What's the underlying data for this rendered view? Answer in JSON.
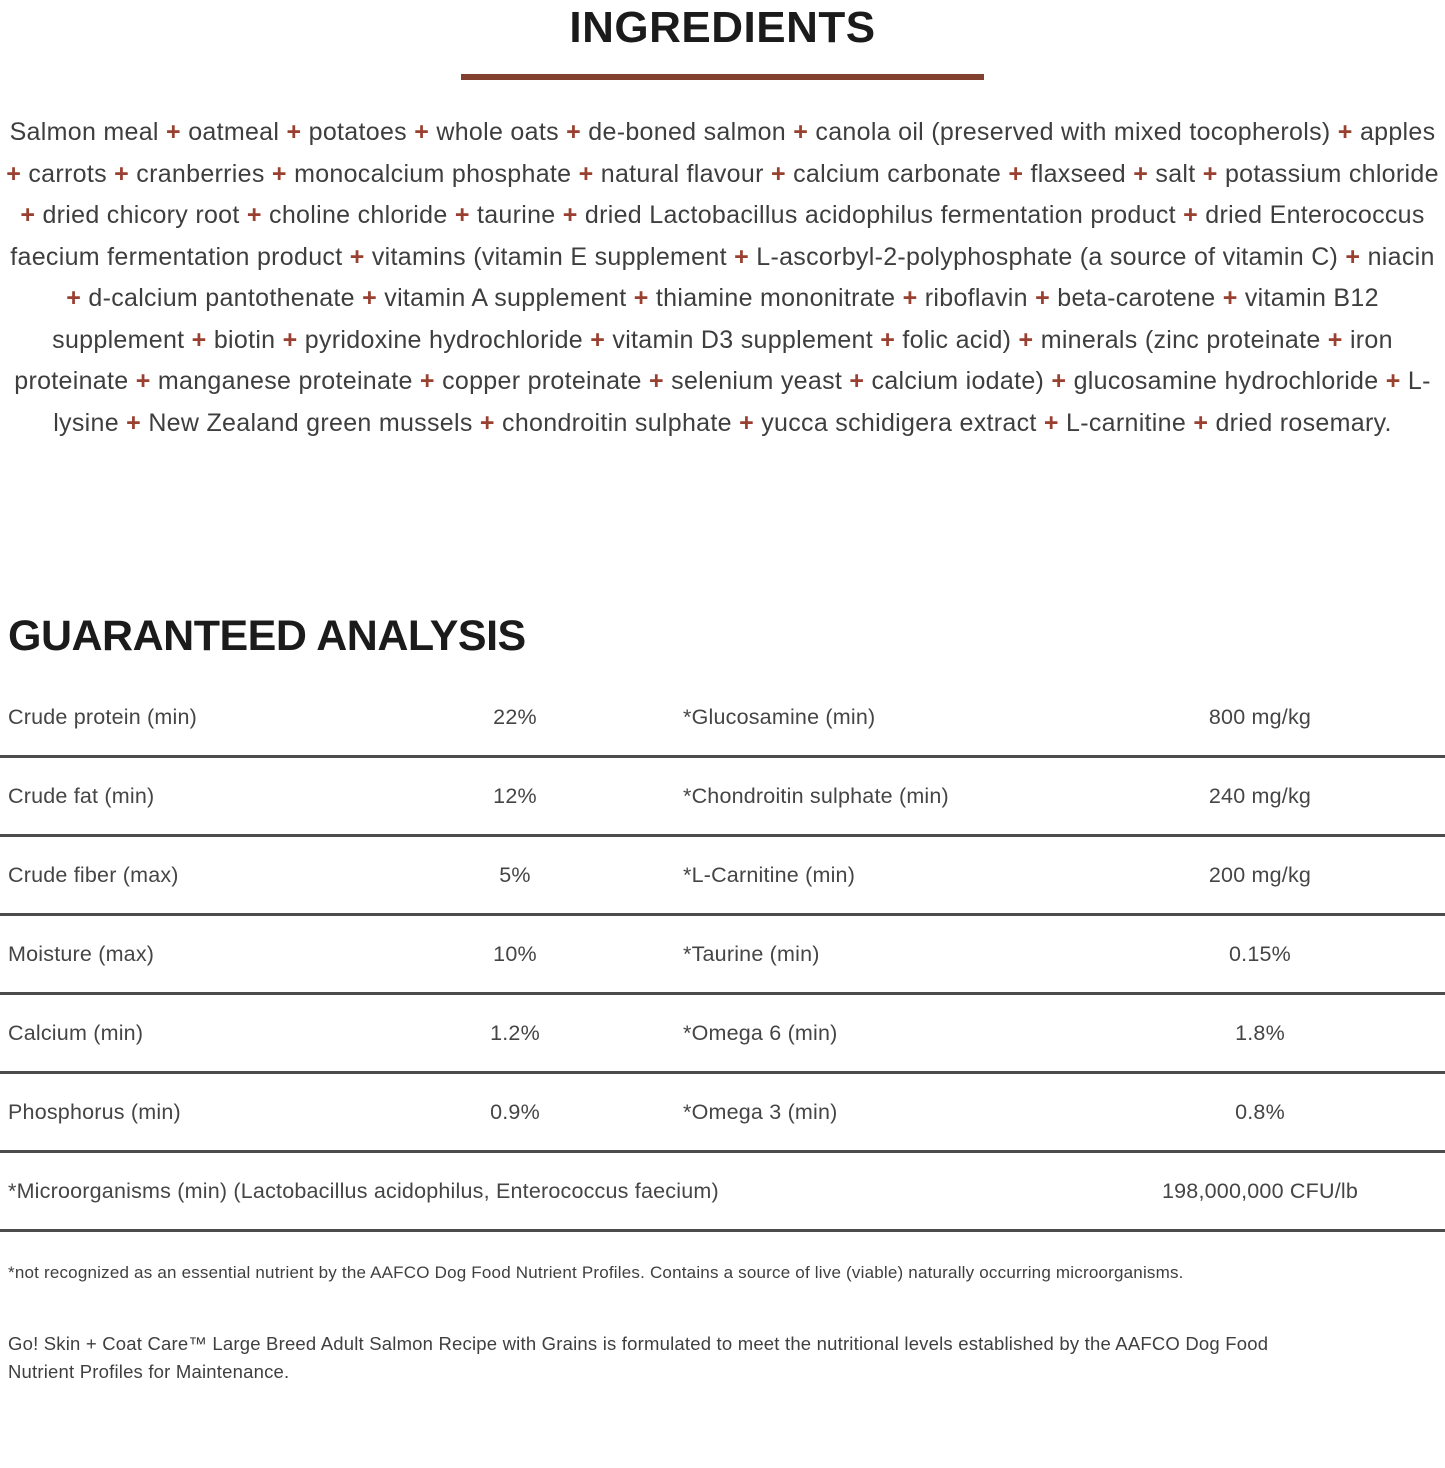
{
  "ingredients_section": {
    "title": "INGREDIENTS",
    "separator": "+",
    "accent_color": "#9a4030",
    "rule_color": "#82402f",
    "items": [
      "Salmon meal",
      "oatmeal",
      "potatoes",
      "whole oats",
      "de-boned salmon",
      "canola oil (preserved with mixed tocopherols)",
      "apples",
      "carrots",
      "cranberries",
      "monocalcium phosphate",
      "natural flavour",
      "calcium carbonate",
      "flaxseed",
      "salt",
      "potassium chloride",
      "dried chicory root",
      "choline chloride",
      "taurine",
      "dried Lactobacillus acidophilus fermentation product",
      "dried Enterococcus faecium fermentation product",
      "vitamins (vitamin E supplement",
      "L-ascorbyl-2-polyphosphate (a source of vitamin C)",
      "niacin",
      "d-calcium pantothenate",
      "vitamin A supplement",
      "thiamine mononitrate",
      "riboflavin",
      "beta-carotene",
      "vitamin B12 supplement",
      "biotin",
      "pyridoxine hydrochloride",
      "vitamin D3 supplement",
      "folic acid)",
      "minerals (zinc proteinate",
      "iron proteinate",
      "manganese proteinate",
      "copper proteinate",
      "selenium yeast",
      "calcium iodate)",
      "glucosamine hydrochloride",
      "L-lysine",
      "New Zealand green mussels",
      "chondroitin sulphate",
      "yucca schidigera extract",
      "L-carnitine",
      "dried rosemary."
    ]
  },
  "analysis_section": {
    "title": "GUARANTEED ANALYSIS",
    "rows": [
      {
        "left_label": "Crude protein (min)",
        "left_value": "22%",
        "right_label": "*Glucosamine (min)",
        "right_value": "800 mg/kg"
      },
      {
        "left_label": "Crude fat (min)",
        "left_value": "12%",
        "right_label": "*Chondroitin sulphate (min)",
        "right_value": "240 mg/kg"
      },
      {
        "left_label": "Crude fiber (max)",
        "left_value": "5%",
        "right_label": "*L-Carnitine (min)",
        "right_value": "200 mg/kg"
      },
      {
        "left_label": "Moisture (max)",
        "left_value": "10%",
        "right_label": "*Taurine (min)",
        "right_value": "0.15%"
      },
      {
        "left_label": "Calcium (min)",
        "left_value": "1.2%",
        "right_label": "*Omega 6 (min)",
        "right_value": "1.8%"
      },
      {
        "left_label": "Phosphorus (min)",
        "left_value": "0.9%",
        "right_label": "*Omega 3 (min)",
        "right_value": "0.8%"
      }
    ],
    "full_row": {
      "label": "*Microorganisms (min) (Lactobacillus acidophilus, Enterococcus faecium)",
      "value": "198,000,000 CFU/lb"
    }
  },
  "footnotes": {
    "aafco_note": "*not recognized as an essential nutrient by the AAFCO Dog Food Nutrient Profiles. Contains a source of live (viable) naturally occurring microorganisms.",
    "formulation_note_lines": [
      "Go! Skin + Coat Care™ Large Breed Adult Salmon Recipe with Grains is formulated to meet the nutritional levels established by the AAFCO Dog Food",
      "Nutrient Profiles for Maintenance."
    ]
  }
}
